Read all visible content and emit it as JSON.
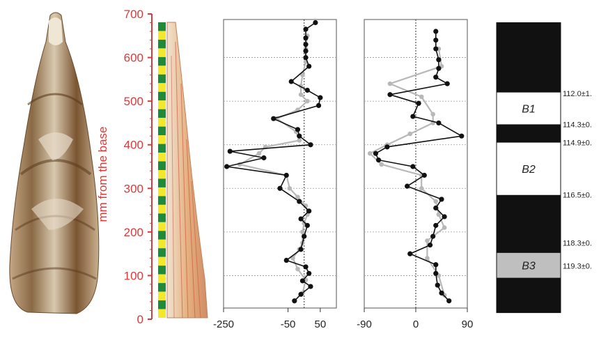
{
  "chart_data": [
    {
      "type": "line",
      "panel": "delta-a",
      "xlim": [
        -250,
        100
      ],
      "xticks": [
        -250,
        -50,
        50
      ],
      "ylim": [
        0,
        700
      ],
      "yticks": [
        0,
        100,
        200,
        300,
        400,
        500,
        600,
        700
      ],
      "ylabel": "mm from the base",
      "reference_line_x": 0,
      "grid": "horizontal dashed",
      "series": [
        {
          "style": "black line with black dots",
          "y": [
            42,
            57,
            75,
            88,
            105,
            120,
            135,
            160,
            190,
            215,
            230,
            248,
            270,
            300,
            330,
            350,
            370,
            385,
            400,
            420,
            435,
            460,
            490,
            508,
            525,
            545,
            580,
            600,
            615,
            630,
            645,
            665,
            680
          ],
          "x": [
            -30,
            -10,
            20,
            -5,
            15,
            5,
            -55,
            -10,
            0,
            10,
            -10,
            15,
            -15,
            -75,
            -55,
            -240,
            -125,
            -230,
            20,
            -15,
            -20,
            -95,
            45,
            50,
            10,
            -40,
            15,
            5,
            5,
            5,
            5,
            5,
            35
          ]
        },
        {
          "style": "grey line with grey dots",
          "y": [
            60,
            90,
            115,
            140,
            160,
            175,
            200,
            220,
            240,
            260,
            280,
            300,
            330,
            355,
            380,
            395,
            410,
            430,
            460,
            480,
            500,
            515,
            535,
            560,
            590,
            620,
            650
          ],
          "x": [
            -5,
            5,
            -20,
            -35,
            -15,
            -5,
            -5,
            0,
            10,
            5,
            -20,
            -45,
            -55,
            -200,
            -140,
            -120,
            -15,
            -25,
            -85,
            -20,
            10,
            -10,
            -10,
            -5,
            5,
            5,
            10
          ]
        }
      ]
    },
    {
      "type": "line",
      "panel": "delta-b",
      "xlim": [
        -90,
        90
      ],
      "xticks": [
        -90,
        0,
        90
      ],
      "ylim": [
        0,
        700
      ],
      "reference_line_x": 0,
      "grid": "horizontal dashed",
      "series": [
        {
          "style": "black line with black dots",
          "y": [
            42,
            60,
            78,
            105,
            125,
            150,
            170,
            190,
            215,
            235,
            255,
            275,
            305,
            330,
            350,
            365,
            380,
            395,
            420,
            450,
            465,
            495,
            515,
            540,
            555,
            575,
            595,
            620,
            640,
            660
          ],
          "x": [
            58,
            45,
            38,
            35,
            35,
            -10,
            25,
            30,
            35,
            50,
            35,
            45,
            -15,
            15,
            -5,
            -65,
            -70,
            -50,
            80,
            40,
            -5,
            5,
            -45,
            55,
            35,
            40,
            40,
            35,
            35,
            35
          ]
        },
        {
          "style": "grey line with grey dots",
          "y": [
            55,
            100,
            140,
            180,
            210,
            240,
            270,
            300,
            330,
            355,
            380,
            400,
            425,
            450,
            470,
            510,
            540,
            580,
            620
          ],
          "x": [
            50,
            40,
            20,
            20,
            50,
            40,
            35,
            10,
            10,
            -60,
            -80,
            -50,
            -10,
            30,
            30,
            10,
            -45,
            45,
            40
          ]
        }
      ]
    },
    {
      "type": "table",
      "panel": "chronology",
      "ylim": [
        0,
        700
      ],
      "blocks": [
        {
          "from": 15,
          "to": 95,
          "fill": "#111111"
        },
        {
          "from": 95,
          "to": 152,
          "fill": "#bfbfbf",
          "label": "B3"
        },
        {
          "from": 152,
          "to": 285,
          "fill": "#111111"
        },
        {
          "from": 285,
          "to": 405,
          "fill": "#ffffff",
          "label": "B2"
        },
        {
          "from": 405,
          "to": 447,
          "fill": "#111111"
        },
        {
          "from": 447,
          "to": 520,
          "fill": "#ffffff",
          "label": "B1"
        },
        {
          "from": 520,
          "to": 680,
          "fill": "#111111"
        }
      ],
      "ages": [
        {
          "y": 518,
          "text": "112.0±1."
        },
        {
          "y": 447,
          "text": "114.3±0."
        },
        {
          "y": 405,
          "text": "114.9±0."
        },
        {
          "y": 285,
          "text": "116.5±0."
        },
        {
          "y": 175,
          "text": "118.3±0."
        },
        {
          "y": 122,
          "text": "119.3±0."
        }
      ]
    }
  ],
  "scale_bar": {
    "color_a": "#1f8a3a",
    "color_b": "#f3e82a",
    "segments": 34
  },
  "colors": {
    "axis_red": "#d93a3a",
    "series_black": "#111111",
    "series_grey": "#b8b8b8",
    "grid": "#9a9a9a"
  }
}
